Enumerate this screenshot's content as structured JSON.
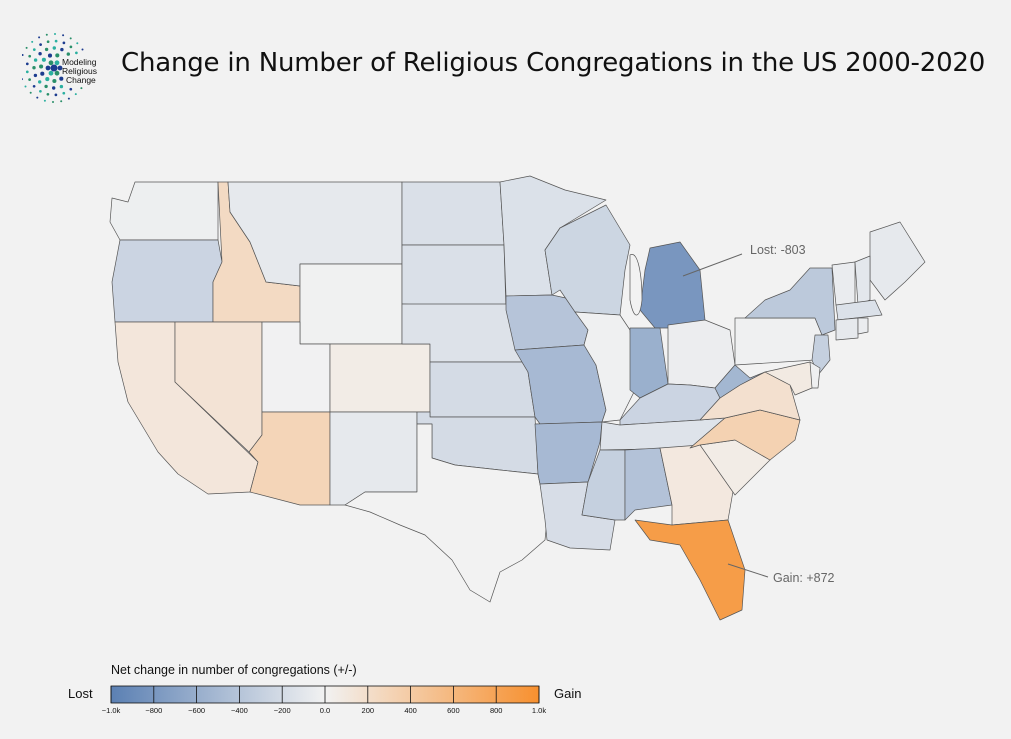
{
  "title": "Change in Number of Religious Congregations in the US 2000-2020",
  "logo": {
    "text": [
      "Modeling",
      "Religious",
      "Change"
    ],
    "colors": [
      "#1d3c8f",
      "#2a8f6a",
      "#2bb0a0"
    ]
  },
  "annotations": {
    "lost": "Lost: -803",
    "gain": "Gain: +872"
  },
  "legend": {
    "title": "Net change in number of congregations (+/-)",
    "left_label": "Lost",
    "right_label": "Gain",
    "min": -1000,
    "max": 1000,
    "ticks": [
      -1000,
      -800,
      -600,
      -400,
      -200,
      0,
      200,
      400,
      600,
      800,
      1000
    ],
    "tick_labels": [
      "−1.0k",
      "−800",
      "−600",
      "−400",
      "−200",
      "0.0",
      "200",
      "400",
      "600",
      "800",
      "1.0k"
    ],
    "colors": [
      "#5b80b3",
      "#f2f2f2",
      "#f7902f"
    ]
  },
  "state_values": {
    "WA": -30,
    "OR": -260,
    "CA": 120,
    "ID": 240,
    "NV": 150,
    "MT": -80,
    "WY": -10,
    "UT": -5,
    "CO": 60,
    "AZ": 300,
    "NM": -80,
    "ND": -160,
    "SD": -160,
    "NE": -140,
    "KS": -200,
    "OK": -200,
    "TX": 0,
    "MN": -150,
    "IA": -400,
    "MO": -500,
    "AR": -500,
    "LA": -180,
    "WI": -250,
    "IL": -20,
    "MI": -803,
    "IN": -580,
    "OH": -40,
    "KY": -260,
    "TN": -130,
    "MS": -300,
    "AL": -420,
    "GA": 100,
    "FL": 872,
    "SC": 60,
    "NC": 330,
    "VA": 180,
    "WV": -520,
    "PA": -20,
    "NY": -360,
    "ME": -80,
    "VT": -50,
    "NH": -100,
    "MA": -150,
    "CT": -80,
    "RI": -50,
    "NJ": -300,
    "DE": -20,
    "MD": 80
  }
}
